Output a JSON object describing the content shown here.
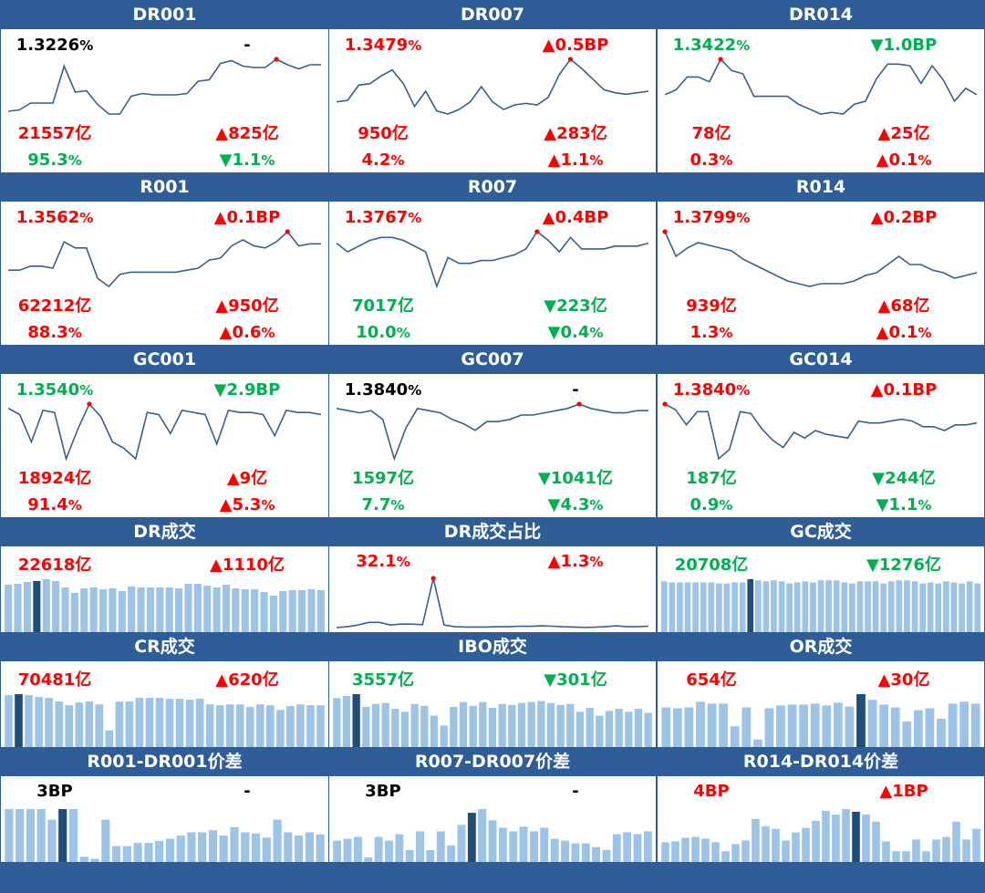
{
  "colors": {
    "header_bg": "#2f5d97",
    "up": "#ff0000",
    "down": "#00b050",
    "neutral": "#000000",
    "line": "#3a5f8a",
    "bar_light": "#9dc3e6",
    "bar_dark": "#1f4e79",
    "marker": "#ff0000"
  },
  "chart_data": [
    {
      "id": "DR001",
      "type": "line",
      "title": "DR001",
      "rate": {
        "text": "1.3226",
        "unit": "%",
        "color": "neutral"
      },
      "rate_change": {
        "text": "-",
        "color": "neutral"
      },
      "volume": {
        "text": "21557亿",
        "color": "up"
      },
      "volume_change": {
        "text": "▲825亿",
        "color": "up"
      },
      "share": {
        "text": "95.3",
        "unit": "%",
        "color": "down"
      },
      "share_change": {
        "text": "▼1.1",
        "unit": "%",
        "color": "down"
      },
      "values": [
        1.1,
        1.11,
        1.16,
        1.16,
        1.16,
        1.43,
        1.24,
        1.25,
        1.15,
        1.08,
        1.08,
        1.21,
        1.23,
        1.22,
        1.22,
        1.22,
        1.23,
        1.32,
        1.33,
        1.45,
        1.47,
        1.43,
        1.42,
        1.42,
        1.48,
        1.44,
        1.41,
        1.44,
        1.44
      ],
      "highlight_index": 24
    },
    {
      "id": "DR007",
      "type": "line",
      "title": "DR007",
      "rate": {
        "text": "1.3479",
        "unit": "%",
        "color": "up"
      },
      "rate_change": {
        "text": "▲0.5BP",
        "color": "up"
      },
      "volume": {
        "text": "950亿",
        "color": "up"
      },
      "volume_change": {
        "text": "▲283亿",
        "color": "up"
      },
      "share": {
        "text": "4.2",
        "unit": "%",
        "color": "up"
      },
      "share_change": {
        "text": "▲1.1",
        "unit": "%",
        "color": "up"
      },
      "values": [
        1.24,
        1.25,
        1.35,
        1.36,
        1.41,
        1.45,
        1.36,
        1.21,
        1.31,
        1.18,
        1.16,
        1.19,
        1.24,
        1.34,
        1.24,
        1.19,
        1.22,
        1.23,
        1.22,
        1.27,
        1.42,
        1.52,
        1.46,
        1.39,
        1.32,
        1.3,
        1.29,
        1.3,
        1.31
      ],
      "highlight_index": 21
    },
    {
      "id": "DR014",
      "type": "line",
      "title": "DR014",
      "rate": {
        "text": "1.3422",
        "unit": "%",
        "color": "down"
      },
      "rate_change": {
        "text": "▼1.0BP",
        "color": "down"
      },
      "volume": {
        "text": "78亿",
        "color": "up"
      },
      "volume_change": {
        "text": "▲25亿",
        "color": "up"
      },
      "share": {
        "text": "0.3",
        "unit": "%",
        "color": "up"
      },
      "share_change": {
        "text": "▲0.1",
        "unit": "%",
        "color": "up"
      },
      "values": [
        1.32,
        1.35,
        1.43,
        1.43,
        1.4,
        1.54,
        1.47,
        1.45,
        1.31,
        1.31,
        1.31,
        1.31,
        1.26,
        1.23,
        1.2,
        1.21,
        1.2,
        1.26,
        1.28,
        1.42,
        1.51,
        1.51,
        1.5,
        1.39,
        1.5,
        1.41,
        1.28,
        1.36,
        1.32
      ],
      "highlight_index": 5
    },
    {
      "id": "R001",
      "type": "line",
      "title": "R001",
      "rate": {
        "text": "1.3562",
        "unit": "%",
        "color": "up"
      },
      "rate_change": {
        "text": "▲0.1BP",
        "color": "up"
      },
      "volume": {
        "text": "62212亿",
        "color": "up"
      },
      "volume_change": {
        "text": "▲950亿",
        "color": "up"
      },
      "share": {
        "text": "88.3",
        "unit": "%",
        "color": "up"
      },
      "share_change": {
        "text": "▲0.6",
        "unit": "%",
        "color": "up"
      },
      "values": [
        1.22,
        1.22,
        1.24,
        1.24,
        1.23,
        1.36,
        1.33,
        1.33,
        1.18,
        1.14,
        1.2,
        1.21,
        1.21,
        1.21,
        1.21,
        1.21,
        1.22,
        1.23,
        1.27,
        1.28,
        1.34,
        1.37,
        1.34,
        1.33,
        1.36,
        1.41,
        1.34,
        1.35,
        1.35
      ],
      "highlight_index": 25
    },
    {
      "id": "R007",
      "type": "line",
      "title": "R007",
      "rate": {
        "text": "1.3767",
        "unit": "%",
        "color": "up"
      },
      "rate_change": {
        "text": "▲0.4BP",
        "color": "up"
      },
      "volume": {
        "text": "7017亿",
        "color": "down"
      },
      "volume_change": {
        "text": "▼223亿",
        "color": "down"
      },
      "share": {
        "text": "10.0",
        "unit": "%",
        "color": "down"
      },
      "share_change": {
        "text": "▼0.4",
        "unit": "%",
        "color": "down"
      },
      "values": [
        1.33,
        1.3,
        1.32,
        1.34,
        1.35,
        1.35,
        1.34,
        1.32,
        1.3,
        1.18,
        1.28,
        1.26,
        1.26,
        1.27,
        1.27,
        1.28,
        1.29,
        1.31,
        1.37,
        1.34,
        1.3,
        1.35,
        1.31,
        1.31,
        1.31,
        1.32,
        1.32,
        1.32,
        1.33
      ],
      "highlight_index": 18
    },
    {
      "id": "R014",
      "type": "line",
      "title": "R014",
      "rate": {
        "text": "1.3799",
        "unit": "%",
        "color": "up"
      },
      "rate_change": {
        "text": "▲0.2BP",
        "color": "up"
      },
      "volume": {
        "text": "939亿",
        "color": "up"
      },
      "volume_change": {
        "text": "▲68亿",
        "color": "up"
      },
      "share": {
        "text": "1.3",
        "unit": "%",
        "color": "up"
      },
      "share_change": {
        "text": "▲0.1",
        "unit": "%",
        "color": "up"
      },
      "values": [
        1.45,
        1.36,
        1.39,
        1.41,
        1.4,
        1.39,
        1.38,
        1.35,
        1.33,
        1.31,
        1.29,
        1.27,
        1.26,
        1.25,
        1.26,
        1.26,
        1.26,
        1.27,
        1.29,
        1.3,
        1.33,
        1.36,
        1.33,
        1.33,
        1.31,
        1.3,
        1.28,
        1.29,
        1.3
      ],
      "highlight_index": 0
    },
    {
      "id": "GC001",
      "type": "line",
      "title": "GC001",
      "rate": {
        "text": "1.3540",
        "unit": "%",
        "color": "down"
      },
      "rate_change": {
        "text": "▼2.9BP",
        "color": "down"
      },
      "volume": {
        "text": "18924亿",
        "color": "up"
      },
      "volume_change": {
        "text": "▲9亿",
        "color": "up"
      },
      "share": {
        "text": "91.4",
        "unit": "%",
        "color": "up"
      },
      "share_change": {
        "text": "▲5.3",
        "unit": "%",
        "color": "up"
      },
      "values": [
        1.4,
        1.37,
        1.24,
        1.39,
        1.38,
        1.16,
        1.3,
        1.42,
        1.36,
        1.24,
        1.21,
        1.16,
        1.38,
        1.37,
        1.28,
        1.39,
        1.38,
        1.37,
        1.23,
        1.39,
        1.38,
        1.38,
        1.37,
        1.27,
        1.39,
        1.38,
        1.38,
        1.37
      ],
      "highlight_index": 7
    },
    {
      "id": "GC007",
      "type": "line",
      "title": "GC007",
      "rate": {
        "text": "1.3840",
        "unit": "%",
        "color": "neutral"
      },
      "rate_change": {
        "text": "-",
        "color": "neutral"
      },
      "volume": {
        "text": "1597亿",
        "color": "down"
      },
      "volume_change": {
        "text": "▼1041亿",
        "color": "down"
      },
      "share": {
        "text": "7.7",
        "unit": "%",
        "color": "down"
      },
      "share_change": {
        "text": "▼4.3",
        "unit": "%",
        "color": "down"
      },
      "values": [
        1.38,
        1.37,
        1.36,
        1.37,
        1.33,
        1.15,
        1.29,
        1.38,
        1.37,
        1.36,
        1.33,
        1.31,
        1.28,
        1.32,
        1.32,
        1.33,
        1.35,
        1.35,
        1.36,
        1.37,
        1.38,
        1.4,
        1.38,
        1.37,
        1.36,
        1.36,
        1.37,
        1.37
      ],
      "highlight_index": 21
    },
    {
      "id": "GC014",
      "type": "line",
      "title": "GC014",
      "rate": {
        "text": "1.3840",
        "unit": "%",
        "color": "up"
      },
      "rate_change": {
        "text": "▲0.1BP",
        "color": "up"
      },
      "volume": {
        "text": "187亿",
        "color": "down"
      },
      "volume_change": {
        "text": "▼244亿",
        "color": "down"
      },
      "share": {
        "text": "0.9",
        "unit": "%",
        "color": "down"
      },
      "share_change": {
        "text": "▼1.1",
        "unit": "%",
        "color": "down"
      },
      "values": [
        1.42,
        1.39,
        1.31,
        1.38,
        1.38,
        1.13,
        1.18,
        1.38,
        1.37,
        1.29,
        1.23,
        1.19,
        1.27,
        1.24,
        1.28,
        1.26,
        1.25,
        1.24,
        1.33,
        1.32,
        1.32,
        1.33,
        1.34,
        1.33,
        1.3,
        1.3,
        1.28,
        1.31,
        1.31,
        1.32
      ],
      "highlight_index": 0
    },
    {
      "id": "DR-volume",
      "type": "bar",
      "title": "DR成交",
      "value": {
        "text": "22618亿",
        "color": "up"
      },
      "change": {
        "text": "▲1110亿",
        "color": "up"
      },
      "values": [
        52,
        53,
        55,
        56,
        58,
        56,
        49,
        43,
        48,
        49,
        47,
        48,
        45,
        50,
        49,
        49,
        49,
        49,
        48,
        53,
        53,
        51,
        49,
        52,
        48,
        47,
        47,
        44,
        40,
        45,
        46,
        46,
        47,
        46
      ],
      "highlight_index": 3
    },
    {
      "id": "DR-share",
      "type": "line",
      "title": "DR成交占比",
      "value": {
        "text": "32.1",
        "unit": "%",
        "color": "up"
      },
      "change": {
        "text": "▲1.3",
        "unit": "%",
        "color": "up"
      },
      "values": [
        1.5,
        2,
        3,
        4.5,
        4.5,
        3,
        3.5,
        3.5,
        3.2,
        30,
        3,
        2,
        1.8,
        1.8,
        1.8,
        2,
        2,
        2.3,
        2.2,
        2.5,
        2.3,
        2,
        1.8,
        1.6,
        1.7,
        2,
        2.5,
        2,
        2,
        2.3
      ],
      "highlight_index": 9
    },
    {
      "id": "GC-volume",
      "type": "bar",
      "title": "GC成交",
      "value": {
        "text": "20708亿",
        "color": "down"
      },
      "change": {
        "text": "▼1276亿",
        "color": "down"
      },
      "values": [
        48,
        47,
        47,
        47,
        47,
        47,
        47,
        46,
        46,
        47,
        47,
        50,
        49,
        48,
        49,
        48,
        46,
        47,
        48,
        47,
        49,
        49,
        49,
        47,
        46,
        48,
        48,
        48,
        46,
        48,
        49,
        49,
        48,
        46,
        47,
        46,
        48,
        47,
        46,
        48,
        46
      ],
      "highlight_index": 11
    },
    {
      "id": "CR-volume",
      "type": "bar",
      "title": "CR成交",
      "value": {
        "text": "70481亿",
        "color": "up"
      },
      "change": {
        "text": "▲620亿",
        "color": "up"
      },
      "values": [
        56,
        57,
        56,
        54,
        53,
        49,
        45,
        48,
        49,
        46,
        18,
        49,
        49,
        53,
        53,
        53,
        52,
        52,
        51,
        52,
        46,
        45,
        46,
        46,
        43,
        46,
        45,
        40,
        44,
        46,
        45,
        45
      ],
      "highlight_index": 1
    },
    {
      "id": "IBO-volume",
      "type": "bar",
      "title": "IBO成交",
      "value": {
        "text": "3557亿",
        "color": "down"
      },
      "change": {
        "text": "▼301亿",
        "color": "down"
      },
      "values": [
        50,
        52,
        54,
        41,
        44,
        45,
        39,
        36,
        44,
        42,
        32,
        22,
        41,
        46,
        42,
        46,
        40,
        44,
        43,
        45,
        46,
        47,
        45,
        43,
        44,
        36,
        40,
        32,
        37,
        39,
        36,
        39,
        35
      ],
      "highlight_index": 2
    },
    {
      "id": "OR-volume",
      "type": "bar",
      "title": "OR成交",
      "value": {
        "text": "654亿",
        "color": "up"
      },
      "change": {
        "text": "▲30亿",
        "color": "up"
      },
      "values": [
        42,
        41,
        42,
        48,
        46,
        46,
        22,
        42,
        8,
        41,
        44,
        45,
        45,
        46,
        44,
        47,
        43,
        56,
        50,
        45,
        42,
        27,
        39,
        41,
        30,
        46,
        48,
        46
      ],
      "highlight_index": 17
    },
    {
      "id": "R001-DR001-spread",
      "type": "bar",
      "title": "R001-DR001价差",
      "value": {
        "text": "3BP",
        "color": "neutral"
      },
      "change": {
        "text": "-",
        "color": "neutral"
      },
      "values": [
        5,
        5,
        5,
        5,
        4,
        5,
        5,
        0.5,
        0.3,
        4,
        1.5,
        1.5,
        1.8,
        1.8,
        2,
        2.2,
        2.5,
        2.8,
        2.8,
        3,
        2.5,
        3.3,
        2.8,
        2.7,
        2.3,
        4,
        2.8,
        2.5,
        2.8,
        2.6
      ],
      "highlight_index": 5
    },
    {
      "id": "R007-DR007-spread",
      "type": "bar",
      "title": "R007-DR007价差",
      "value": {
        "text": "3BP",
        "color": "neutral"
      },
      "change": {
        "text": "-",
        "color": "neutral"
      },
      "values": [
        2.3,
        2.5,
        2.7,
        0.5,
        2.7,
        2.3,
        3,
        1.3,
        3.3,
        1.3,
        3.3,
        1.8,
        4,
        5.3,
        5.7,
        4.5,
        3.7,
        3.3,
        3.8,
        3.3,
        3.7,
        2.5,
        2.3,
        2,
        2,
        1.6,
        1.3,
        3,
        3.2,
        3,
        3.3
      ],
      "highlight_index": 13
    },
    {
      "id": "R014-DR014-spread",
      "type": "bar",
      "title": "R014-DR014价差",
      "value": {
        "text": "4BP",
        "color": "up"
      },
      "change": {
        "text": "▲1BP",
        "color": "up"
      },
      "values": [
        2.2,
        2.3,
        2.7,
        2.8,
        2.6,
        2.2,
        1.2,
        2,
        2.4,
        4.8,
        4,
        3.7,
        2.4,
        3.3,
        3.8,
        4.6,
        5.7,
        5.3,
        5.9,
        5.6,
        5.3,
        4.5,
        2.3,
        1.2,
        1.2,
        2.5,
        1.2,
        2.5,
        2.8,
        4.5,
        2.5,
        3.7
      ],
      "highlight_index": 19
    }
  ]
}
